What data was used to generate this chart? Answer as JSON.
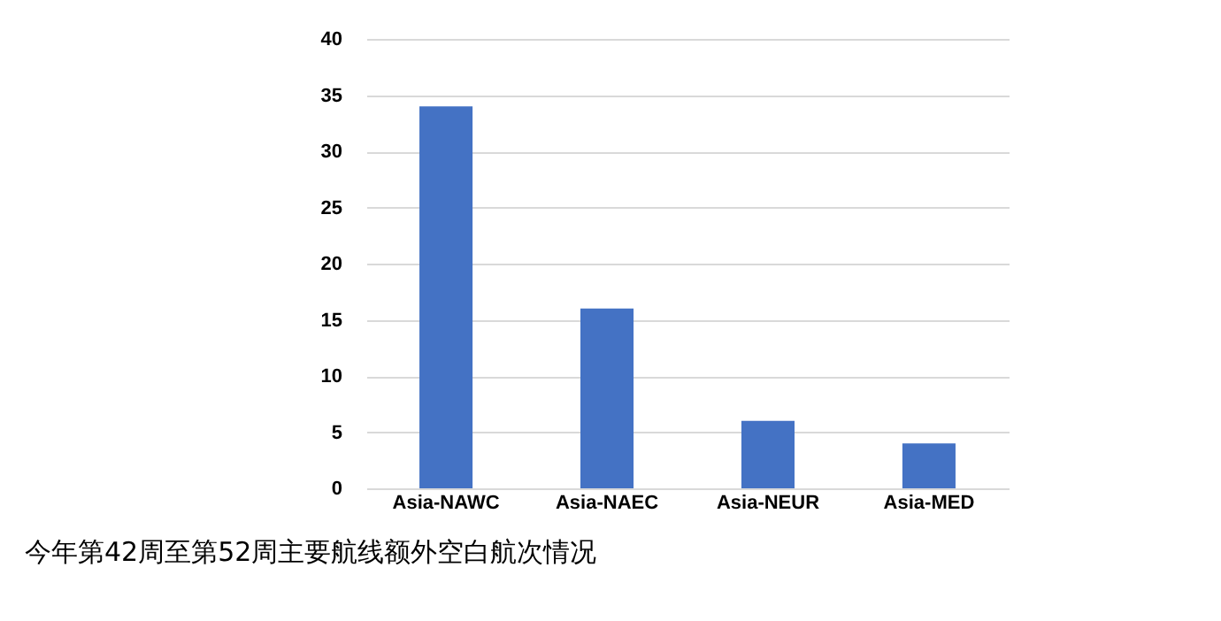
{
  "chart_data": {
    "type": "bar",
    "title": "今年第42周至第52周主要航线额外空白航次情况",
    "categories": [
      "Asia-NAWC",
      "Asia-NAEC",
      "Asia-NEUR",
      "Asia-MED"
    ],
    "values": [
      34,
      16,
      6,
      4
    ],
    "color": "#4472c4",
    "ylim": [
      0,
      40
    ],
    "yticks": [
      0,
      5,
      10,
      15,
      20,
      25,
      30,
      35,
      40
    ],
    "grid": "y"
  }
}
